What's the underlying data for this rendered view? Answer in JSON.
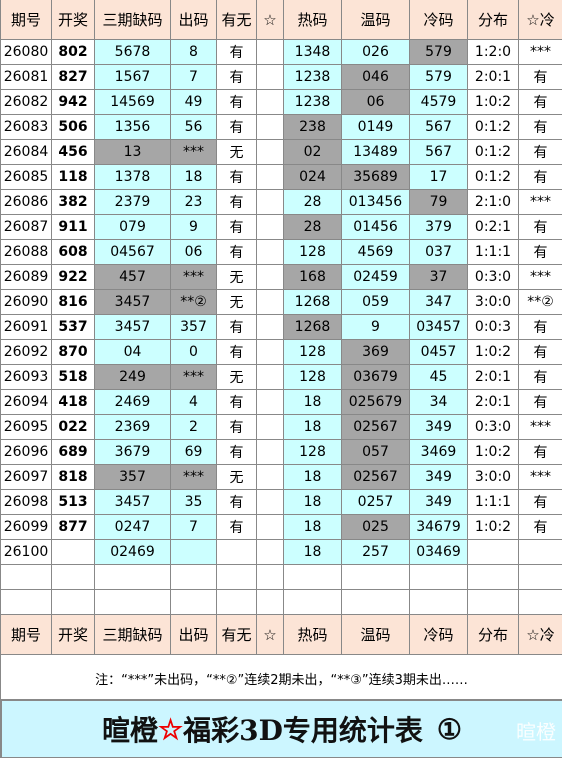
{
  "table": {
    "columns": [
      "期号",
      "开奖",
      "三期缺码",
      "出码",
      "有无",
      "☆",
      "热码",
      "温码",
      "冷码",
      "分布",
      "☆冷"
    ],
    "rows": [
      [
        "26080",
        "802",
        "5678",
        "8",
        "有",
        null,
        "1348",
        "026",
        "579",
        "1:2:0",
        "***"
      ],
      [
        "26081",
        "827",
        "1567",
        "7",
        "有",
        null,
        "1238",
        "046",
        "579",
        "2:0:1",
        "有"
      ],
      [
        "26082",
        "942",
        "14569",
        "49",
        "有",
        null,
        "1238",
        "06",
        "4579",
        "1:0:2",
        "有"
      ],
      [
        "26083",
        "506",
        "1356",
        "56",
        "有",
        null,
        "238",
        "0149",
        "567",
        "0:1:2",
        "有"
      ],
      [
        "26084",
        "456",
        "13",
        "***",
        "无",
        null,
        "02",
        "13489",
        "567",
        "0:1:2",
        "有"
      ],
      [
        "26085",
        "118",
        "1378",
        "18",
        "有",
        null,
        "024",
        "35689",
        "17",
        "0:1:2",
        "有"
      ],
      [
        "26086",
        "382",
        "2379",
        "23",
        "有",
        null,
        "28",
        "013456",
        "79",
        "2:1:0",
        "***"
      ],
      [
        "26087",
        "911",
        "079",
        "9",
        "有",
        null,
        "28",
        "01456",
        "379",
        "0:2:1",
        "有"
      ],
      [
        "26088",
        "608",
        "04567",
        "06",
        "有",
        null,
        "128",
        "4569",
        "037",
        "1:1:1",
        "有"
      ],
      [
        "26089",
        "922",
        "457",
        "***",
        "无",
        null,
        "168",
        "02459",
        "37",
        "0:3:0",
        "***"
      ],
      [
        "26090",
        "816",
        "3457",
        "**②",
        "无",
        null,
        "1268",
        "059",
        "347",
        "3:0:0",
        "**②"
      ],
      [
        "26091",
        "537",
        "3457",
        "357",
        "有",
        null,
        "1268",
        "9",
        "03457",
        "0:0:3",
        "有"
      ],
      [
        "26092",
        "870",
        "04",
        "0",
        "有",
        null,
        "128",
        "369",
        "0457",
        "1:0:2",
        "有"
      ],
      [
        "26093",
        "518",
        "249",
        "***",
        "无",
        null,
        "128",
        "03679",
        "45",
        "2:0:1",
        "有"
      ],
      [
        "26094",
        "418",
        "2469",
        "4",
        "有",
        null,
        "18",
        "025679",
        "34",
        "2:0:1",
        "有"
      ],
      [
        "26095",
        "022",
        "2369",
        "2",
        "有",
        null,
        "18",
        "02567",
        "349",
        "0:3:0",
        "***"
      ],
      [
        "26096",
        "689",
        "3679",
        "69",
        "有",
        null,
        "128",
        "057",
        "3469",
        "1:0:2",
        "有"
      ],
      [
        "26097",
        "818",
        "357",
        "***",
        "无",
        null,
        "18",
        "02567",
        "349",
        "3:0:0",
        "***"
      ],
      [
        "26098",
        "513",
        "3457",
        "35",
        "有",
        null,
        "18",
        "0257",
        "349",
        "1:1:1",
        "有"
      ],
      [
        "26099",
        "877",
        "0247",
        "7",
        "有",
        null,
        "18",
        "025",
        "34679",
        "1:0:2",
        "有"
      ],
      [
        "26100",
        null,
        "02469",
        null,
        null,
        null,
        "18",
        "257",
        "03469",
        null,
        null
      ]
    ],
    "gray_cells": [
      [
        0,
        8
      ],
      [
        1,
        7
      ],
      [
        2,
        7
      ],
      [
        3,
        6
      ],
      [
        4,
        2
      ],
      [
        4,
        3
      ],
      [
        4,
        6
      ],
      [
        5,
        6
      ],
      [
        5,
        7
      ],
      [
        6,
        8
      ],
      [
        7,
        6
      ],
      [
        9,
        2
      ],
      [
        9,
        3
      ],
      [
        9,
        6
      ],
      [
        9,
        8
      ],
      [
        10,
        2
      ],
      [
        10,
        3
      ],
      [
        11,
        6
      ],
      [
        12,
        7
      ],
      [
        13,
        2
      ],
      [
        13,
        3
      ],
      [
        13,
        7
      ],
      [
        14,
        7
      ],
      [
        15,
        7
      ],
      [
        16,
        7
      ],
      [
        17,
        2
      ],
      [
        17,
        3
      ],
      [
        17,
        7
      ],
      [
        19,
        7
      ]
    ]
  },
  "note": "注：“***”未出码，“**②”连续2期未出，“**③”连续3期未出……",
  "title": {
    "brand": "暄橙",
    "star": "☆",
    "text": "福彩3D专用统计表",
    "number": "①"
  },
  "watermark": "暄橙"
}
